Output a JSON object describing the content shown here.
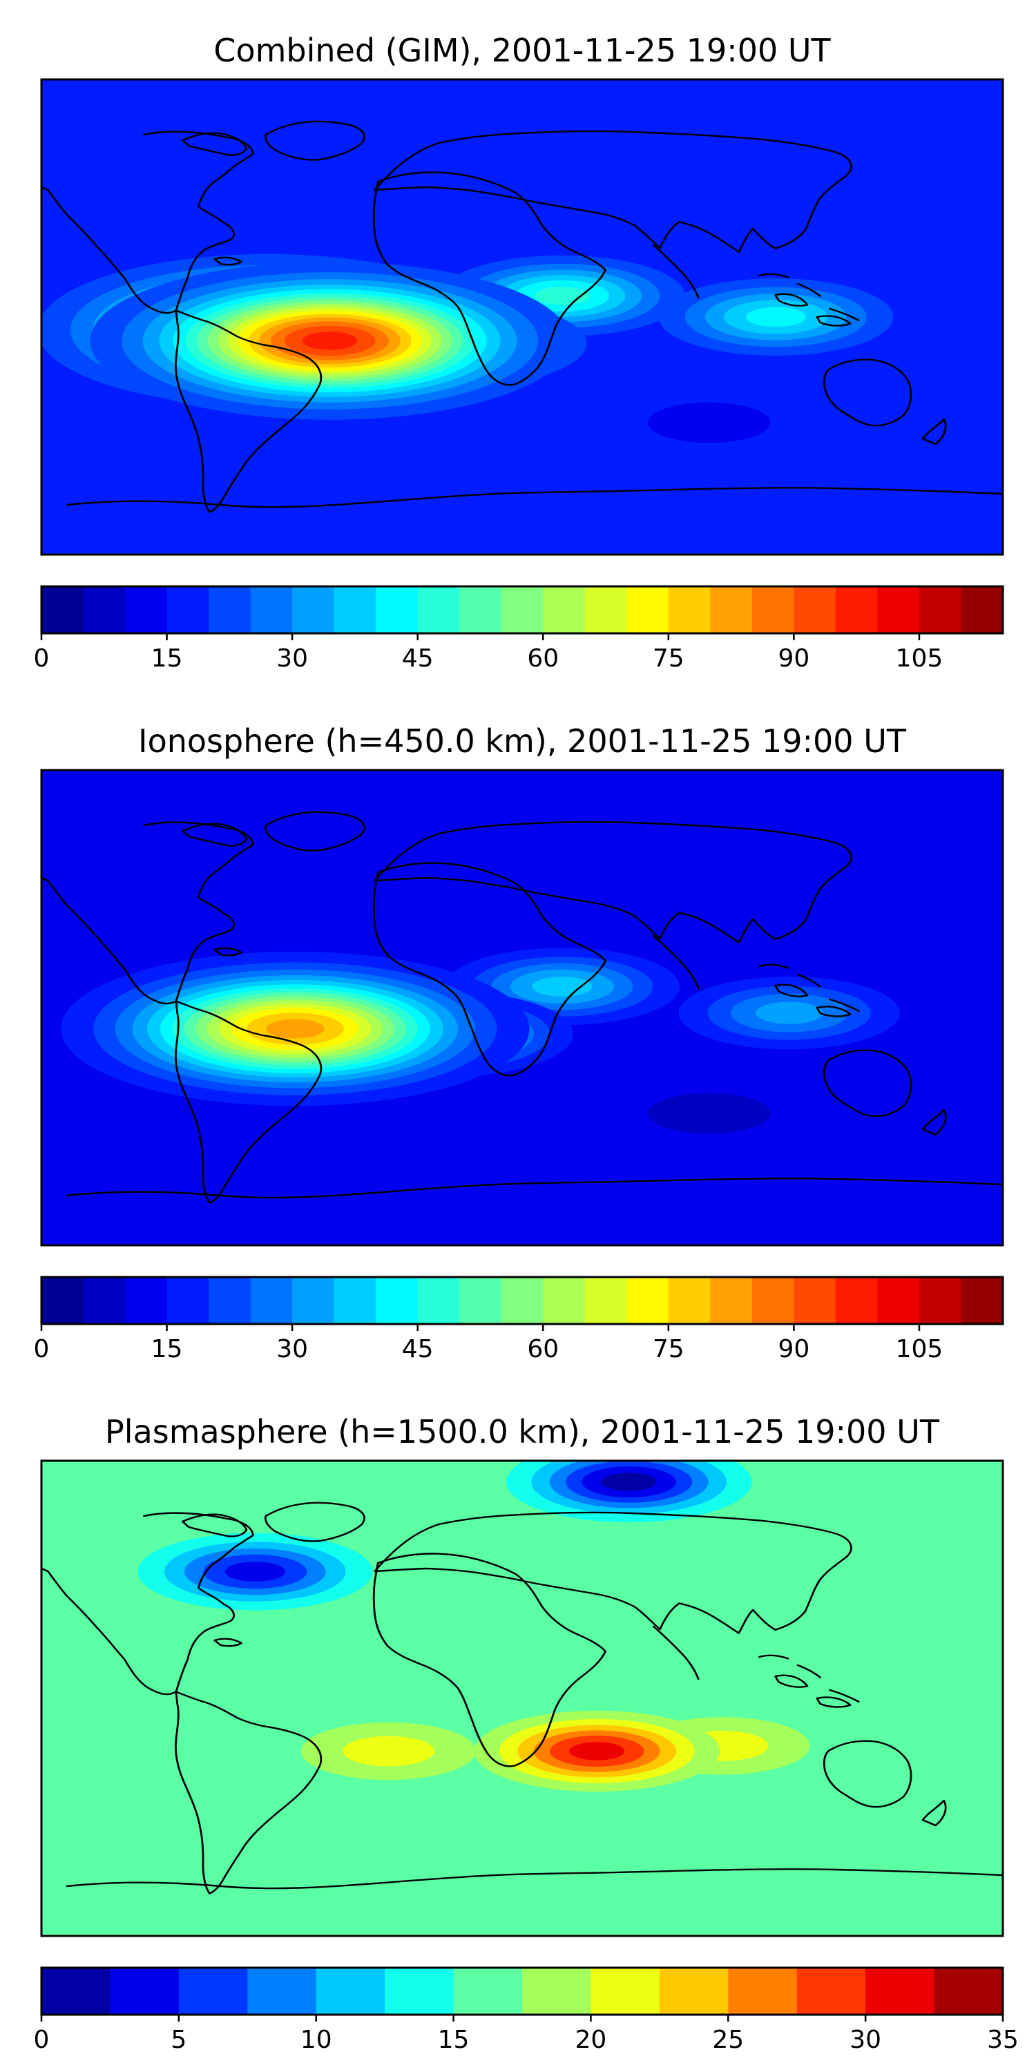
{
  "figure": {
    "background": "#ffffff"
  },
  "chart_data": [
    {
      "type": "heatmap",
      "subtype": "filled-contour world map (equirectangular, Earth coastlines overlay)",
      "title": "Combined (GIM), 2001-11-25 19:00 UT",
      "colormap": "jet",
      "colorbar": {
        "vmin": 0,
        "vmax": 115,
        "step": 5,
        "ticks": [
          0,
          15,
          30,
          45,
          60,
          75,
          90,
          105
        ],
        "tick_labels": [
          "0",
          "15",
          "30",
          "45",
          "60",
          "75",
          "90",
          "105"
        ]
      },
      "background_value": 18,
      "features": [
        {
          "name": "equatorial anomaly peak over South America",
          "lon": -72,
          "lat": -9,
          "value": 100
        },
        {
          "name": "Pacific extension of anomaly",
          "lon": -95,
          "lat": -5,
          "value": 85
        },
        {
          "name": "South Atlantic tail",
          "lon": -25,
          "lat": -10,
          "value": 62
        },
        {
          "name": "Africa crest",
          "lon": 15,
          "lat": 8,
          "value": 48
        },
        {
          "name": "Indian Ocean / Indonesia band",
          "lon": 95,
          "lat": 0,
          "value": 45
        },
        {
          "name": "Southern ocean trough",
          "lon": 70,
          "lat": -40,
          "value": 14
        }
      ]
    },
    {
      "type": "heatmap",
      "subtype": "filled-contour world map (equirectangular, Earth coastlines overlay)",
      "title": "Ionosphere  (h=450.0 km), 2001-11-25 19:00 UT",
      "colormap": "jet",
      "colorbar": {
        "vmin": 0,
        "vmax": 115,
        "step": 5,
        "ticks": [
          0,
          15,
          30,
          45,
          60,
          75,
          90,
          105
        ],
        "tick_labels": [
          "0",
          "15",
          "30",
          "45",
          "60",
          "75",
          "90",
          "105"
        ]
      },
      "background_value": 12,
      "features": [
        {
          "name": "equatorial anomaly peak over South America",
          "lon": -85,
          "lat": -8,
          "value": 85
        },
        {
          "name": "South Atlantic tail",
          "lon": -30,
          "lat": -10,
          "value": 55
        },
        {
          "name": "Africa crest",
          "lon": 15,
          "lat": 8,
          "value": 38
        },
        {
          "name": "Indonesia band",
          "lon": 100,
          "lat": -2,
          "value": 35
        },
        {
          "name": "Southern ocean trough",
          "lon": 70,
          "lat": -40,
          "value": 6
        }
      ]
    },
    {
      "type": "heatmap",
      "subtype": "filled-contour world map (equirectangular, Earth coastlines overlay)",
      "title": "Plasmasphere (h=1500.0 km), 2001-11-25 19:00 UT",
      "colormap": "jet",
      "colorbar": {
        "vmin": 0,
        "vmax": 35,
        "step": 2.5,
        "ticks": [
          0,
          5,
          10,
          15,
          20,
          25,
          30,
          35
        ],
        "tick_labels": [
          "0",
          "5",
          "10",
          "15",
          "20",
          "25",
          "30",
          "35"
        ]
      },
      "background_value": 17,
      "features": [
        {
          "name": "southern Africa maximum",
          "lon": 28,
          "lat": -20,
          "value": 33
        },
        {
          "name": "South America secondary maximum",
          "lon": -50,
          "lat": -20,
          "value": 24
        },
        {
          "name": "Indian Ocean extension",
          "lon": 75,
          "lat": -18,
          "value": 22
        },
        {
          "name": "North America minimum",
          "lon": -100,
          "lat": 48,
          "value": 3
        },
        {
          "name": "Arctic minimum",
          "lon": 40,
          "lat": 82,
          "value": 2
        }
      ]
    }
  ]
}
